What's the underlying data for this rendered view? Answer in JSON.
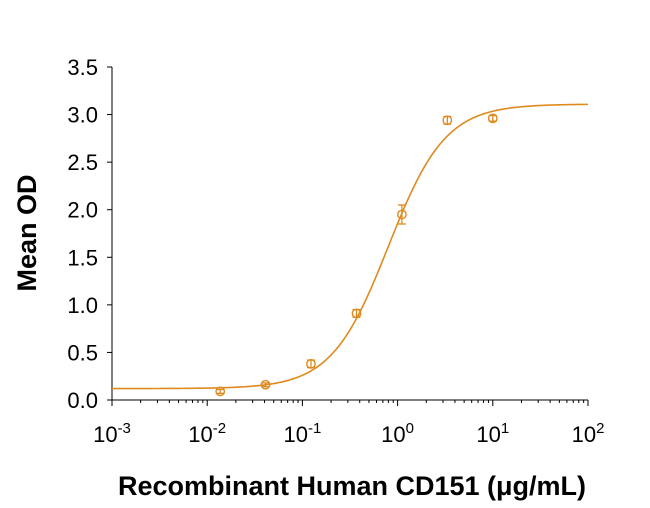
{
  "chart_data": {
    "type": "scatter",
    "xlabel": "Recombinant Human CD151 (μg/mL)",
    "ylabel": "Mean OD",
    "x_scale": "log",
    "xlim": [
      0.001,
      100
    ],
    "ylim": [
      0,
      3.5
    ],
    "x_ticks": [
      {
        "base": "10",
        "exp": "-3",
        "value": 0.001
      },
      {
        "base": "10",
        "exp": "-2",
        "value": 0.01
      },
      {
        "base": "10",
        "exp": "-1",
        "value": 0.1
      },
      {
        "base": "10",
        "exp": "0",
        "value": 1
      },
      {
        "base": "10",
        "exp": "1",
        "value": 10
      },
      {
        "base": "10",
        "exp": "2",
        "value": 100
      }
    ],
    "y_ticks": [
      "0.0",
      "0.5",
      "1.0",
      "1.5",
      "2.0",
      "2.5",
      "3.0",
      "3.5"
    ],
    "grid": false,
    "color": "#E08A1E",
    "points": [
      {
        "x": 0.0137,
        "y": 0.09,
        "err": 0.02
      },
      {
        "x": 0.041,
        "y": 0.16,
        "err": 0.02
      },
      {
        "x": 0.123,
        "y": 0.38,
        "err": 0.04
      },
      {
        "x": 0.37,
        "y": 0.91,
        "err": 0.04
      },
      {
        "x": 1.11,
        "y": 1.95,
        "err": 0.1
      },
      {
        "x": 3.33,
        "y": 2.94,
        "err": 0.04
      },
      {
        "x": 10,
        "y": 2.96,
        "err": 0.03
      }
    ],
    "fit": {
      "model": "4PL",
      "bottom": 0.12,
      "top": 3.11,
      "ec50": 0.8,
      "hill": 1.45
    }
  }
}
